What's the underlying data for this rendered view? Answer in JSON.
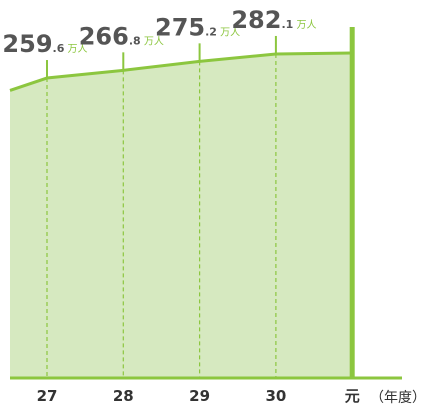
{
  "chart_data": {
    "type": "area",
    "categories": [
      null,
      "27",
      "28",
      "29",
      "30",
      "元"
    ],
    "values": [
      248,
      259.6,
      266.8,
      275.2,
      282.1,
      283
    ],
    "value_labels": [
      null,
      "259.6 万人",
      "266.8 万人",
      "275.2 万人",
      "282.1 万人",
      null
    ],
    "x_label": "（年度）",
    "color": "#8cc63f",
    "fill": "#d6e9c0"
  }
}
